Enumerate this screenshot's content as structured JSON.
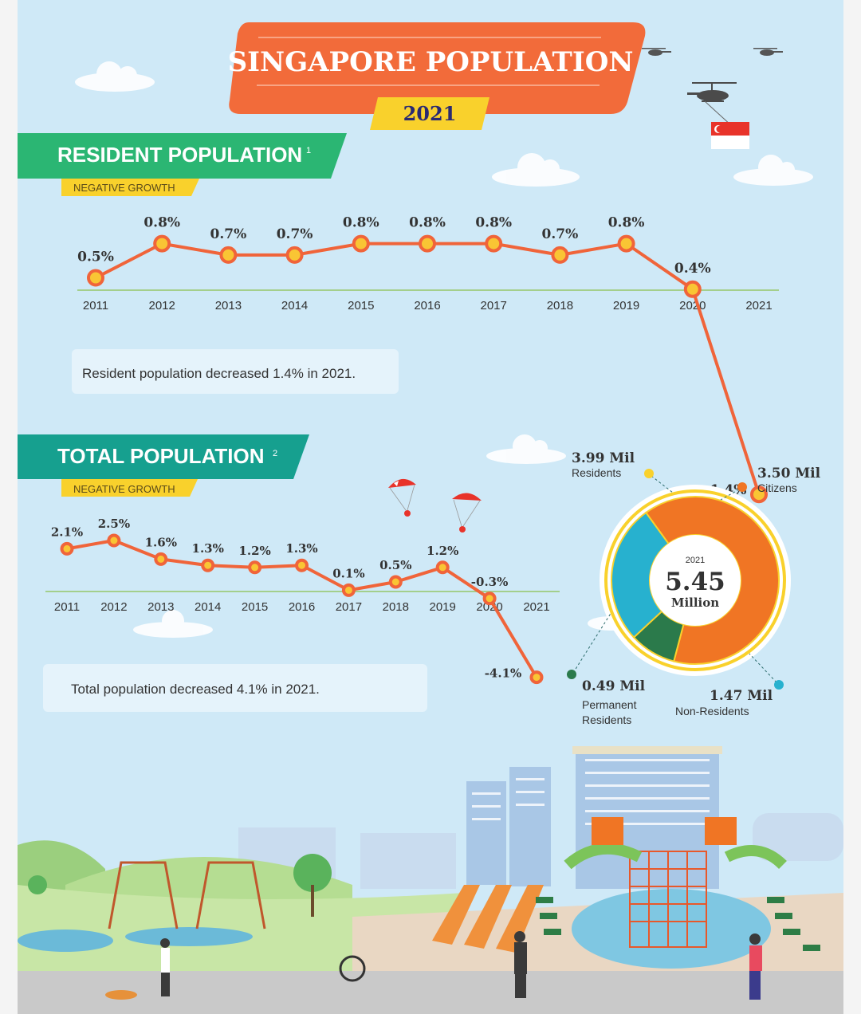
{
  "header": {
    "title": "SINGAPORE POPULATION",
    "year": "2021"
  },
  "resident_section": {
    "title": "RESIDENT POPULATION",
    "footnote": "1",
    "tag": "NEGATIVE GROWTH",
    "note": "Resident population decreased 1.4% in 2021."
  },
  "total_section": {
    "title": "TOTAL POPULATION",
    "footnote": "2",
    "tag": "NEGATIVE GROWTH",
    "note": "Total population decreased 4.1% in 2021."
  },
  "donut": {
    "year": "2021",
    "value": "5.45",
    "unit": "Million",
    "callouts": {
      "residents": {
        "value": "3.99 Mil",
        "label": "Residents"
      },
      "citizens": {
        "value": "3.50 Mil",
        "label": "Citizens"
      },
      "pr": {
        "value": "0.49 Mil",
        "label_line1": "Permanent",
        "label_line2": "Residents"
      },
      "nonres": {
        "value": "1.47 Mil",
        "label": "Non-Residents"
      }
    }
  },
  "colors": {
    "background": "#cfe9f7",
    "title_banner": "#f26b3a",
    "year_badge": "#f9d12c",
    "green_banner": "#2bb673",
    "teal_banner": "#16a08f",
    "line": "#f0643a",
    "marker": "#f9c534",
    "citizens": "#f07524",
    "permanent_residents": "#2b7a4b",
    "non_residents": "#27b1cf",
    "residents_ring": "#f9d12c"
  },
  "chart_data": [
    {
      "type": "line",
      "title": "RESIDENT POPULATION",
      "x": [
        "2011",
        "2012",
        "2013",
        "2014",
        "2015",
        "2016",
        "2017",
        "2018",
        "2019",
        "2020",
        "2021"
      ],
      "series": [
        {
          "values": [
            0.5,
            0.8,
            0.7,
            0.7,
            0.8,
            0.8,
            0.8,
            0.7,
            0.8,
            0.4,
            -1.4
          ],
          "labels": [
            "0.5%",
            "0.8%",
            "0.7%",
            "0.7%",
            "0.8%",
            "0.8%",
            "0.8%",
            "0.7%",
            "0.8%",
            "0.4%",
            "-1.4%"
          ]
        }
      ],
      "ylim": [
        -1.5,
        1.0
      ],
      "grid": false
    },
    {
      "type": "line",
      "title": "TOTAL POPULATION",
      "x": [
        "2011",
        "2012",
        "2013",
        "2014",
        "2015",
        "2016",
        "2017",
        "2018",
        "2019",
        "2020",
        "2021"
      ],
      "series": [
        {
          "values": [
            2.1,
            2.5,
            1.6,
            1.3,
            1.2,
            1.3,
            0.1,
            0.5,
            1.2,
            -0.3,
            -4.1
          ],
          "labels": [
            "2.1%",
            "2.5%",
            "1.6%",
            "1.3%",
            "1.2%",
            "1.3%",
            "0.1%",
            "0.5%",
            "1.2%",
            "-0.3%",
            "-4.1%"
          ]
        }
      ],
      "ylim": [
        -4.2,
        2.6
      ],
      "grid": false
    },
    {
      "type": "pie",
      "categories": [
        "Citizens",
        "Permanent Residents",
        "Non-Residents"
      ],
      "values": [
        3.5,
        0.49,
        1.47
      ],
      "unit": "Million",
      "total": 5.45
    }
  ]
}
